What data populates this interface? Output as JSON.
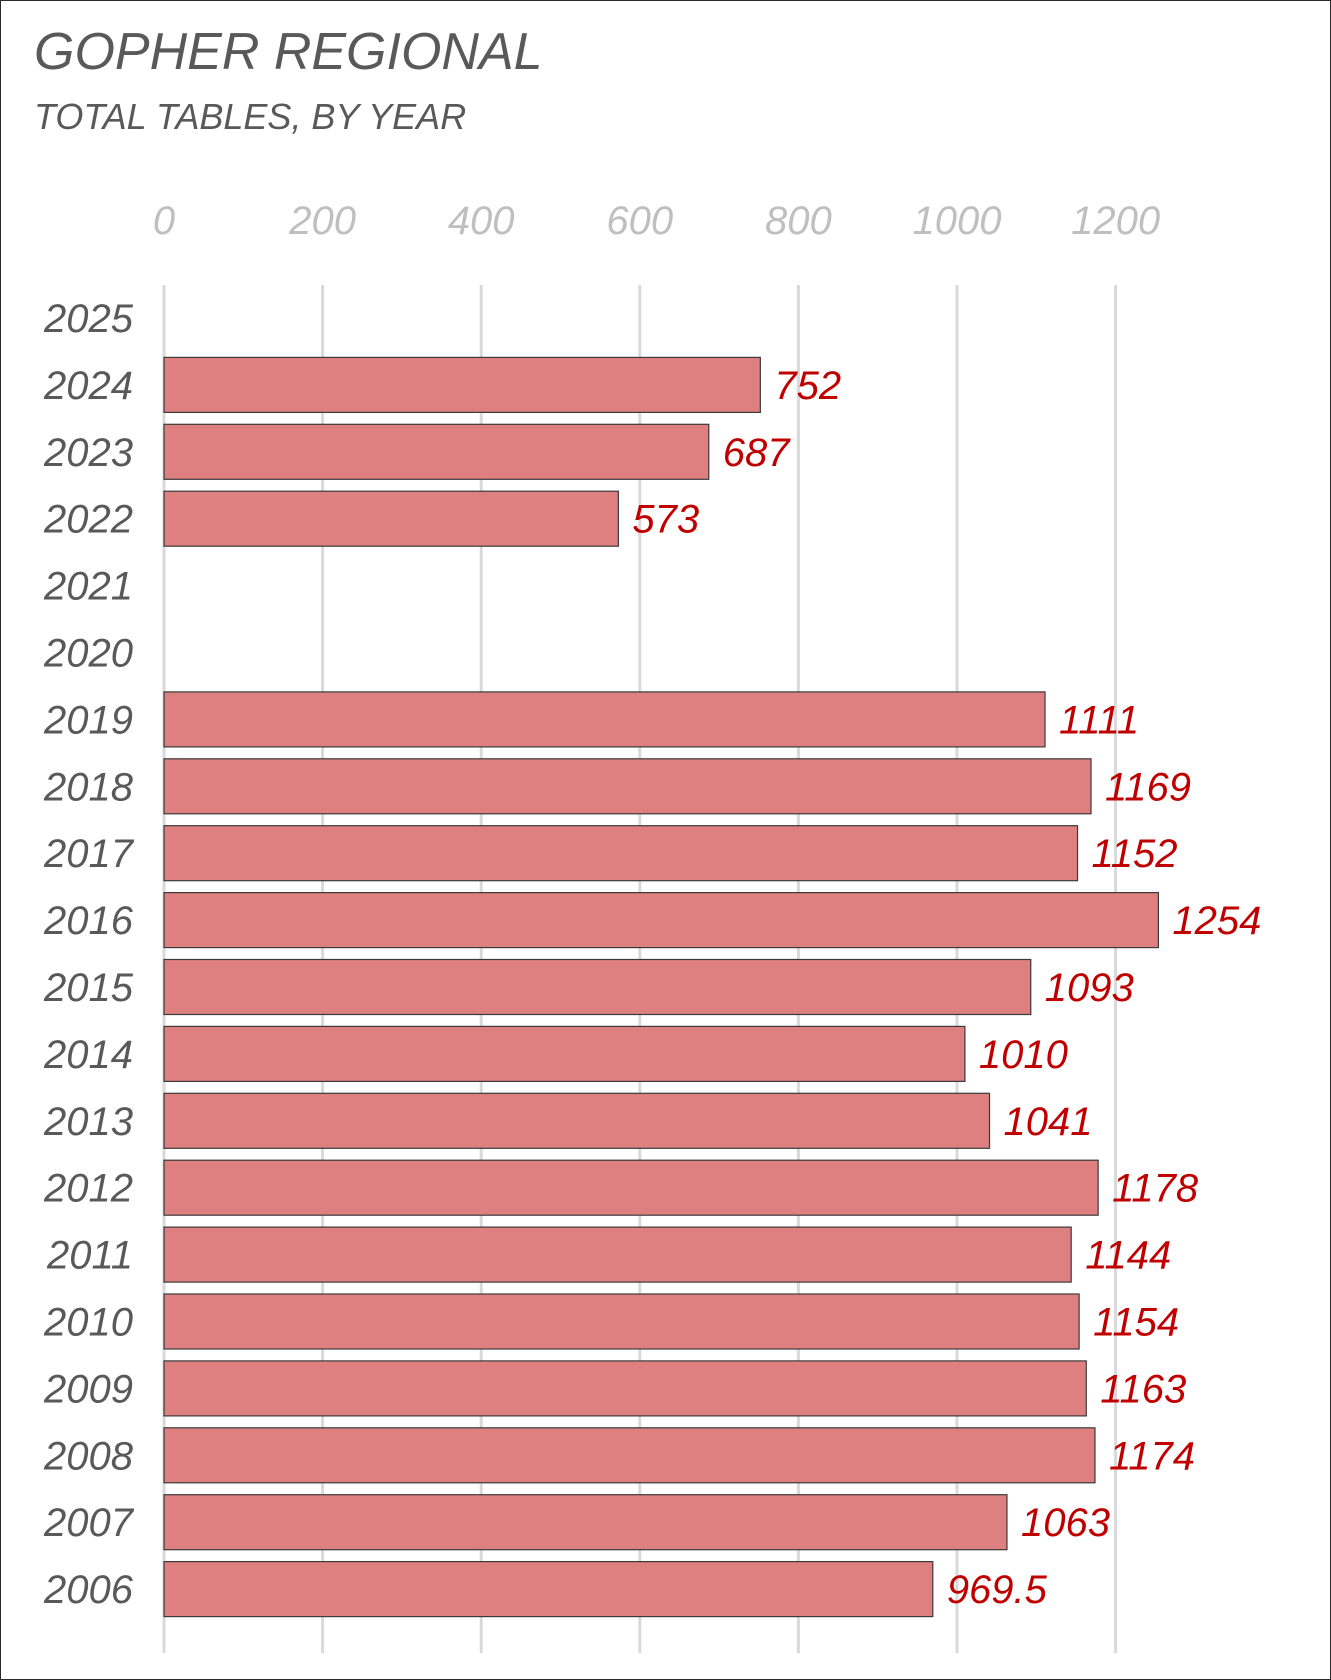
{
  "chart_data": {
    "type": "bar",
    "orientation": "horizontal",
    "title": "GOPHER REGIONAL",
    "subtitle": "TOTAL TABLES, BY YEAR",
    "categories": [
      "2025",
      "2024",
      "2023",
      "2022",
      "2021",
      "2020",
      "2019",
      "2018",
      "2017",
      "2016",
      "2015",
      "2014",
      "2013",
      "2012",
      "2011",
      "2010",
      "2009",
      "2008",
      "2007",
      "2006"
    ],
    "values": [
      null,
      752,
      687,
      573,
      null,
      null,
      1111,
      1169,
      1152,
      1254,
      1093,
      1010,
      1041,
      1178,
      1144,
      1154,
      1163,
      1174,
      1063,
      969.5
    ],
    "data_labels": [
      "",
      "752",
      "687",
      "573",
      "",
      "",
      "1111",
      "1169",
      "1152",
      "1254",
      "1093",
      "1010",
      "1041",
      "1178",
      "1144",
      "1154",
      "1163",
      "1174",
      "1063",
      "969.5"
    ],
    "xlim": [
      0,
      1200
    ],
    "xticks": [
      0,
      200,
      400,
      600,
      800,
      1000,
      1200
    ],
    "xtick_labels": [
      "0",
      "200",
      "400",
      "600",
      "800",
      "1000",
      "1200"
    ],
    "xaxis_position": "top",
    "grid": true,
    "legend": "none",
    "colors": {
      "bar_fill": "#df8080",
      "bar_stroke": "#3a3a3a",
      "data_label": "#c00000",
      "category_label": "#595959",
      "tick_label": "#bfbfbf",
      "gridline": "#d9d9d9",
      "title": "#595959"
    }
  }
}
